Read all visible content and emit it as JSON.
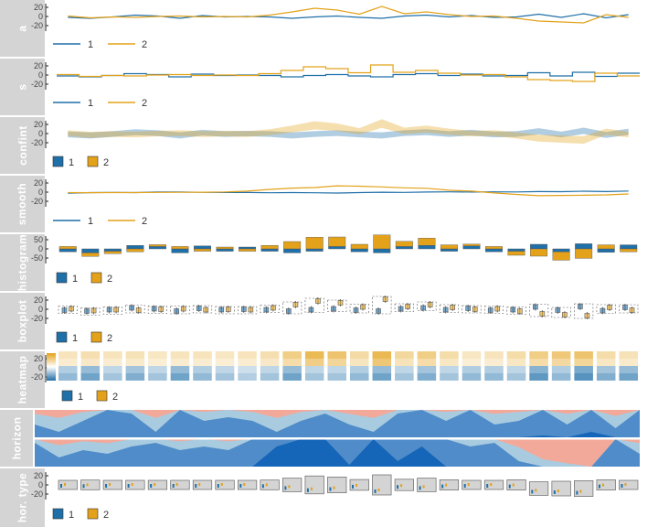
{
  "panels": {
    "a": "a",
    "s": "s",
    "confint": "confint",
    "smooth": "smooth",
    "histogram": "histogram",
    "boxplot": "boxplot",
    "heatmap": "heatmap",
    "horizon": "horizon",
    "hor_type": "hor. type"
  },
  "legend": {
    "series1": "1",
    "series2": "2"
  },
  "colors": {
    "series1": "#1f6fa8",
    "series2": "#e3a21a",
    "strip": "#d4d4d4",
    "neg": "#f2a99a"
  },
  "chart_data": {
    "type": "line",
    "x": [
      1,
      2,
      3,
      4,
      5,
      6,
      7,
      8,
      9,
      10,
      11,
      12,
      13,
      14,
      15,
      16,
      17,
      18,
      19,
      20,
      21,
      22,
      23,
      24,
      25,
      26
    ],
    "series": [
      {
        "name": "1",
        "values": [
          -2,
          -4,
          -1,
          3,
          1,
          -4,
          2,
          -1,
          0,
          -1,
          -4,
          -1,
          1,
          -2,
          -4,
          1,
          3,
          -1,
          2,
          -2,
          -1,
          5,
          -2,
          6,
          -3,
          4
        ]
      },
      {
        "name": "2",
        "values": [
          1,
          -3,
          -1,
          -2,
          0,
          1,
          -1,
          0,
          -1,
          3,
          10,
          18,
          14,
          5,
          22,
          6,
          10,
          4,
          0,
          1,
          -4,
          -10,
          -12,
          -14,
          4,
          -2
        ]
      }
    ],
    "ytick_labels": [
      "20",
      "0",
      "-20"
    ],
    "histogram_ytick_labels": [
      "50",
      "0",
      "-50"
    ],
    "ylim": [
      -25,
      25
    ]
  }
}
